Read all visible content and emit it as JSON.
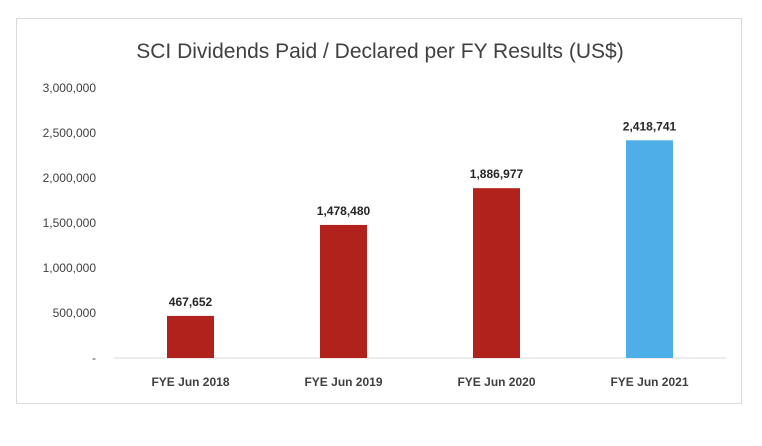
{
  "chart_data": {
    "type": "bar",
    "title": "SCI Dividends Paid / Declared per FY Results (US$)",
    "xlabel": "",
    "ylabel": "",
    "categories": [
      "FYE Jun 2018",
      "FYE Jun 2019",
      "FYE Jun 2020",
      "FYE Jun 2021"
    ],
    "values": [
      467652,
      1478480,
      1886977,
      2418741
    ],
    "data_labels": [
      "467,652",
      "1,478,480",
      "1,886,977",
      "2,418,741"
    ],
    "bar_colors": [
      "#b0221b",
      "#b0221b",
      "#b0221b",
      "#4daee8"
    ],
    "ylim": [
      0,
      3000000
    ],
    "yticks": [
      0,
      500000,
      1000000,
      1500000,
      2000000,
      2500000,
      3000000
    ],
    "ytick_labels": [
      "-",
      "500,000",
      "1,000,000",
      "1,500,000",
      "2,000,000",
      "2,500,000",
      "3,000,000"
    ],
    "grid": false,
    "legend": "none"
  }
}
